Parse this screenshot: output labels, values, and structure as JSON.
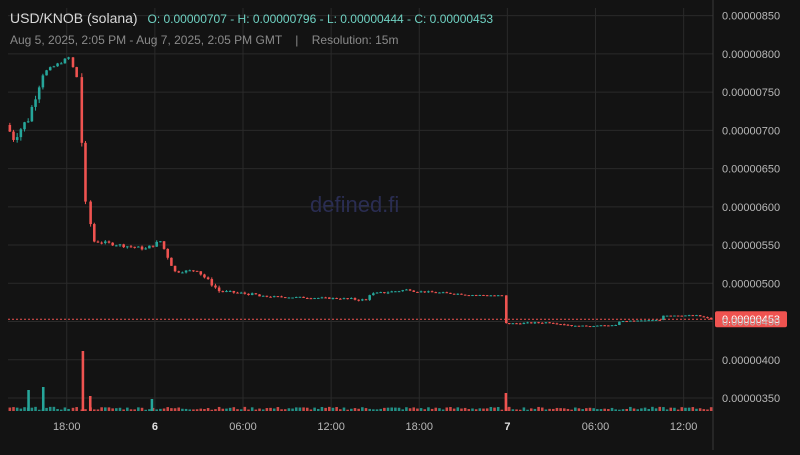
{
  "header": {
    "symbol": "USD/KNOB (solana)",
    "ohlc": "O: 0.00000707 - H: 0.00000796 - L: 0.00000444 - C: 0.00000453",
    "range": "Aug 5, 2025, 2:05 PM - Aug 7, 2025, 2:05 PM GMT",
    "separator": "|",
    "resolution": "Resolution: 15m"
  },
  "watermark": "defined.fi",
  "colors": {
    "up": "#26a69a",
    "down": "#ef5350",
    "grid": "#2a2a2a",
    "text": "#b8b8b8",
    "bg": "#131313"
  },
  "chart_data": {
    "type": "candlestick",
    "interval": "15m",
    "y_ticks": [
      "0.00000850",
      "0.00000800",
      "0.00000750",
      "0.00000700",
      "0.00000650",
      "0.00000600",
      "0.00000550",
      "0.00000500",
      "0.00000450",
      "0.00000400",
      "0.00000350"
    ],
    "ylim": [
      3.33e-06,
      8.6e-06
    ],
    "last_price_label": "0.00000453",
    "last_price": 4.53e-06,
    "x_ticks": [
      {
        "label": "18:00",
        "bold": false,
        "hour": 4
      },
      {
        "label": "6",
        "bold": true,
        "hour": 10
      },
      {
        "label": "06:00",
        "bold": false,
        "hour": 16
      },
      {
        "label": "12:00",
        "bold": false,
        "hour": 22
      },
      {
        "label": "18:00",
        "bold": false,
        "hour": 28
      },
      {
        "label": "7",
        "bold": true,
        "hour": 34
      },
      {
        "label": "06:00",
        "bold": false,
        "hour": 40
      },
      {
        "label": "12:00",
        "bold": false,
        "hour": 46
      }
    ],
    "grid": true,
    "segments": [
      {
        "t0": 0,
        "t1": 0.5,
        "p0": 7.07e-06,
        "p1": 6.9e-06,
        "noise": 1e-07
      },
      {
        "t0": 0.5,
        "t1": 1.5,
        "p0": 6.9e-06,
        "p1": 7.15e-06,
        "noise": 1.2e-07
      },
      {
        "t0": 1.5,
        "t1": 2.5,
        "p0": 7.15e-06,
        "p1": 7.75e-06,
        "noise": 1e-07
      },
      {
        "t0": 2.5,
        "t1": 4.3,
        "p0": 7.75e-06,
        "p1": 7.95e-06,
        "noise": 4e-08
      },
      {
        "t0": 4.3,
        "t1": 4.9,
        "p0": 7.93e-06,
        "p1": 7.7e-06,
        "noise": 8e-08
      },
      {
        "t0": 4.9,
        "t1": 5.5,
        "p0": 7.7e-06,
        "p1": 6e-06,
        "noise": 1.5e-07
      },
      {
        "t0": 5.5,
        "t1": 6.0,
        "p0": 6e-06,
        "p1": 5.55e-06,
        "noise": 8e-08
      },
      {
        "t0": 6.0,
        "t1": 9.5,
        "p0": 5.55e-06,
        "p1": 5.45e-06,
        "noise": 4e-08
      },
      {
        "t0": 9.5,
        "t1": 10.5,
        "p0": 5.45e-06,
        "p1": 5.55e-06,
        "noise": 5e-08
      },
      {
        "t0": 10.5,
        "t1": 11.5,
        "p0": 5.55e-06,
        "p1": 5.15e-06,
        "noise": 6e-08
      },
      {
        "t0": 11.5,
        "t1": 13.0,
        "p0": 5.15e-06,
        "p1": 5.17e-06,
        "noise": 3e-08
      },
      {
        "t0": 13.0,
        "t1": 14.5,
        "p0": 5.17e-06,
        "p1": 4.9e-06,
        "noise": 5e-08
      },
      {
        "t0": 14.5,
        "t1": 17.0,
        "p0": 4.9e-06,
        "p1": 4.85e-06,
        "noise": 3e-08
      },
      {
        "t0": 17.0,
        "t1": 23.0,
        "p0": 4.83e-06,
        "p1": 4.8e-06,
        "noise": 2e-08
      },
      {
        "t0": 23.0,
        "t1": 24.5,
        "p0": 4.8e-06,
        "p1": 4.78e-06,
        "noise": 3e-08
      },
      {
        "t0": 24.5,
        "t1": 27.5,
        "p0": 4.85e-06,
        "p1": 4.92e-06,
        "noise": 3e-08
      },
      {
        "t0": 27.5,
        "t1": 31.0,
        "p0": 4.9e-06,
        "p1": 4.86e-06,
        "noise": 2e-08
      },
      {
        "t0": 31.0,
        "t1": 33.8,
        "p0": 4.85e-06,
        "p1": 4.84e-06,
        "noise": 1e-08
      },
      {
        "t0": 33.8,
        "t1": 34.0,
        "p0": 4.84e-06,
        "p1": 4.47e-06,
        "noise": 4e-08
      },
      {
        "t0": 34.0,
        "t1": 37.0,
        "p0": 4.47e-06,
        "p1": 4.49e-06,
        "noise": 2e-08
      },
      {
        "t0": 37.0,
        "t1": 38.5,
        "p0": 4.49e-06,
        "p1": 4.45e-06,
        "noise": 2e-08
      },
      {
        "t0": 38.5,
        "t1": 41.5,
        "p0": 4.44e-06,
        "p1": 4.45e-06,
        "noise": 1e-08
      },
      {
        "t0": 41.5,
        "t1": 44.5,
        "p0": 4.5e-06,
        "p1": 4.52e-06,
        "noise": 1e-08
      },
      {
        "t0": 44.5,
        "t1": 47.0,
        "p0": 4.58e-06,
        "p1": 4.58e-06,
        "noise": 1e-08
      },
      {
        "t0": 47.0,
        "t1": 48.0,
        "p0": 4.58e-06,
        "p1": 4.53e-06,
        "noise": 2e-08
      }
    ],
    "volume_spikes": [
      {
        "hour": 1.4,
        "rel": 0.35,
        "up": true
      },
      {
        "hour": 2.4,
        "rel": 0.4,
        "up": true
      },
      {
        "hour": 5.1,
        "rel": 1.0,
        "up": false
      },
      {
        "hour": 5.6,
        "rel": 0.25,
        "up": false
      },
      {
        "hour": 9.8,
        "rel": 0.2,
        "up": true
      },
      {
        "hour": 33.9,
        "rel": 0.3,
        "up": false
      }
    ]
  }
}
